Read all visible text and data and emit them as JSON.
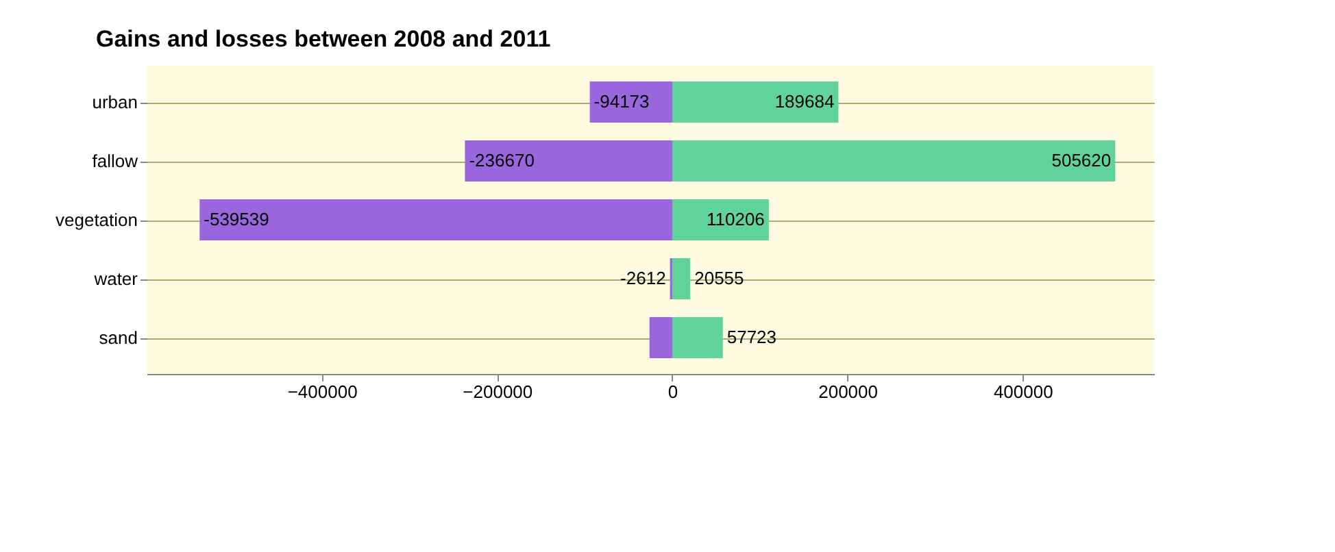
{
  "chart_data": {
    "type": "bar",
    "orientation": "horizontal",
    "title": "Gains and losses between 2008 and 2011",
    "categories": [
      "urban",
      "fallow",
      "vegetation",
      "water",
      "sand"
    ],
    "series": [
      {
        "color": "#9966dd",
        "values": [
          -94173,
          -236670,
          -539539,
          -2612,
          -26000
        ],
        "value_labels": [
          "-94173",
          "-236670",
          "-539539",
          "-2612",
          null
        ]
      },
      {
        "color": "#5fd39a",
        "values": [
          189684,
          505620,
          110206,
          20555,
          57723
        ],
        "value_labels": [
          "189684",
          "505620",
          "110206",
          "20555",
          "57723"
        ]
      }
    ],
    "xlim": [
      -600000,
      550000
    ],
    "xticks": [
      -400000,
      -200000,
      0,
      200000,
      400000
    ],
    "grid": "y",
    "stacked": true
  }
}
